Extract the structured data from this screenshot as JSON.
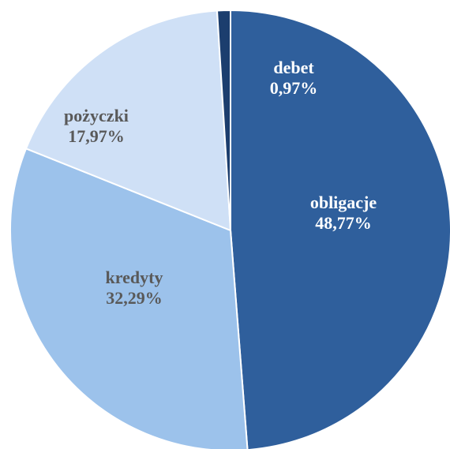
{
  "chart_data": {
    "type": "pie",
    "categories": [
      "obligacje",
      "kredyty",
      "pożyczki",
      "debet"
    ],
    "values": [
      48.77,
      32.29,
      17.97,
      0.97
    ],
    "value_labels": [
      "48,77%",
      "32,29%",
      "17,97%",
      "0,97%"
    ],
    "colors": [
      "#2f5f9c",
      "#9cc2eb",
      "#cfe0f6",
      "#1c3e6e"
    ],
    "label_colors": [
      "#ffffff",
      "#595959",
      "#595959",
      "#ffffff"
    ]
  }
}
